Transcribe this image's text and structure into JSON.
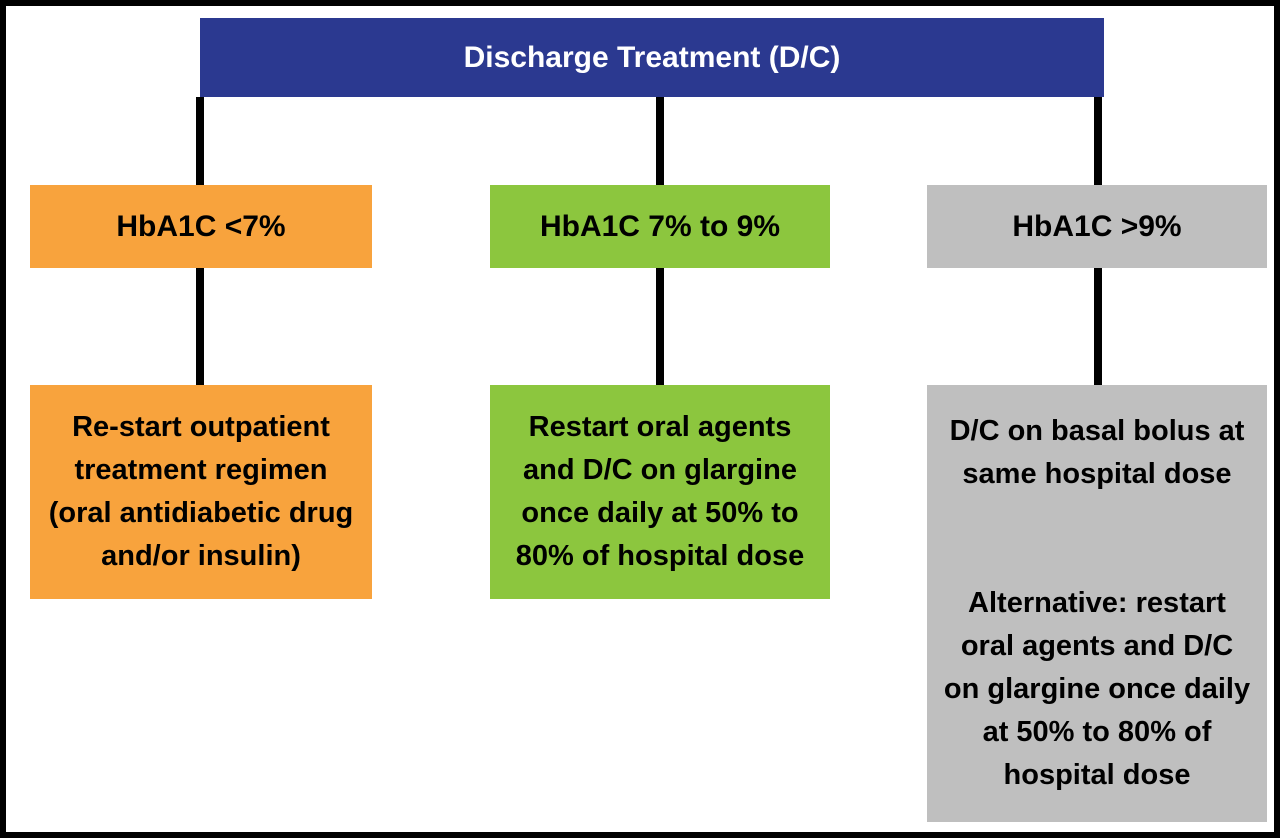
{
  "diagram": {
    "title": "Discharge Treatment (D/C)",
    "colors": {
      "header_bg": "#2B3990",
      "header_text": "#FFFFFF",
      "orange": "#F8A33D",
      "green": "#8CC63E",
      "gray": "#BFBFBF",
      "connector": "#000000",
      "border": "#000000",
      "text": "#000000",
      "background": "#FFFFFF"
    },
    "branches": [
      {
        "condition": "HbA1C <7%",
        "treatment_lines": [
          "Re-start outpatient",
          "treatment regimen",
          "(oral antidiabetic drug",
          "and/or insulin)"
        ]
      },
      {
        "condition": "HbA1C 7% to 9%",
        "treatment_lines": [
          "Restart oral agents",
          "and D/C on glargine",
          "once daily at 50% to",
          "80% of hospital dose"
        ]
      },
      {
        "condition": "HbA1C >9%",
        "treatment_primary_lines": [
          "D/C on basal bolus at",
          "same hospital dose"
        ],
        "treatment_alternative_lines": [
          "Alternative: restart",
          "oral agents and D/C",
          "on glargine once daily",
          "at 50% to 80% of",
          "hospital dose"
        ]
      }
    ]
  }
}
